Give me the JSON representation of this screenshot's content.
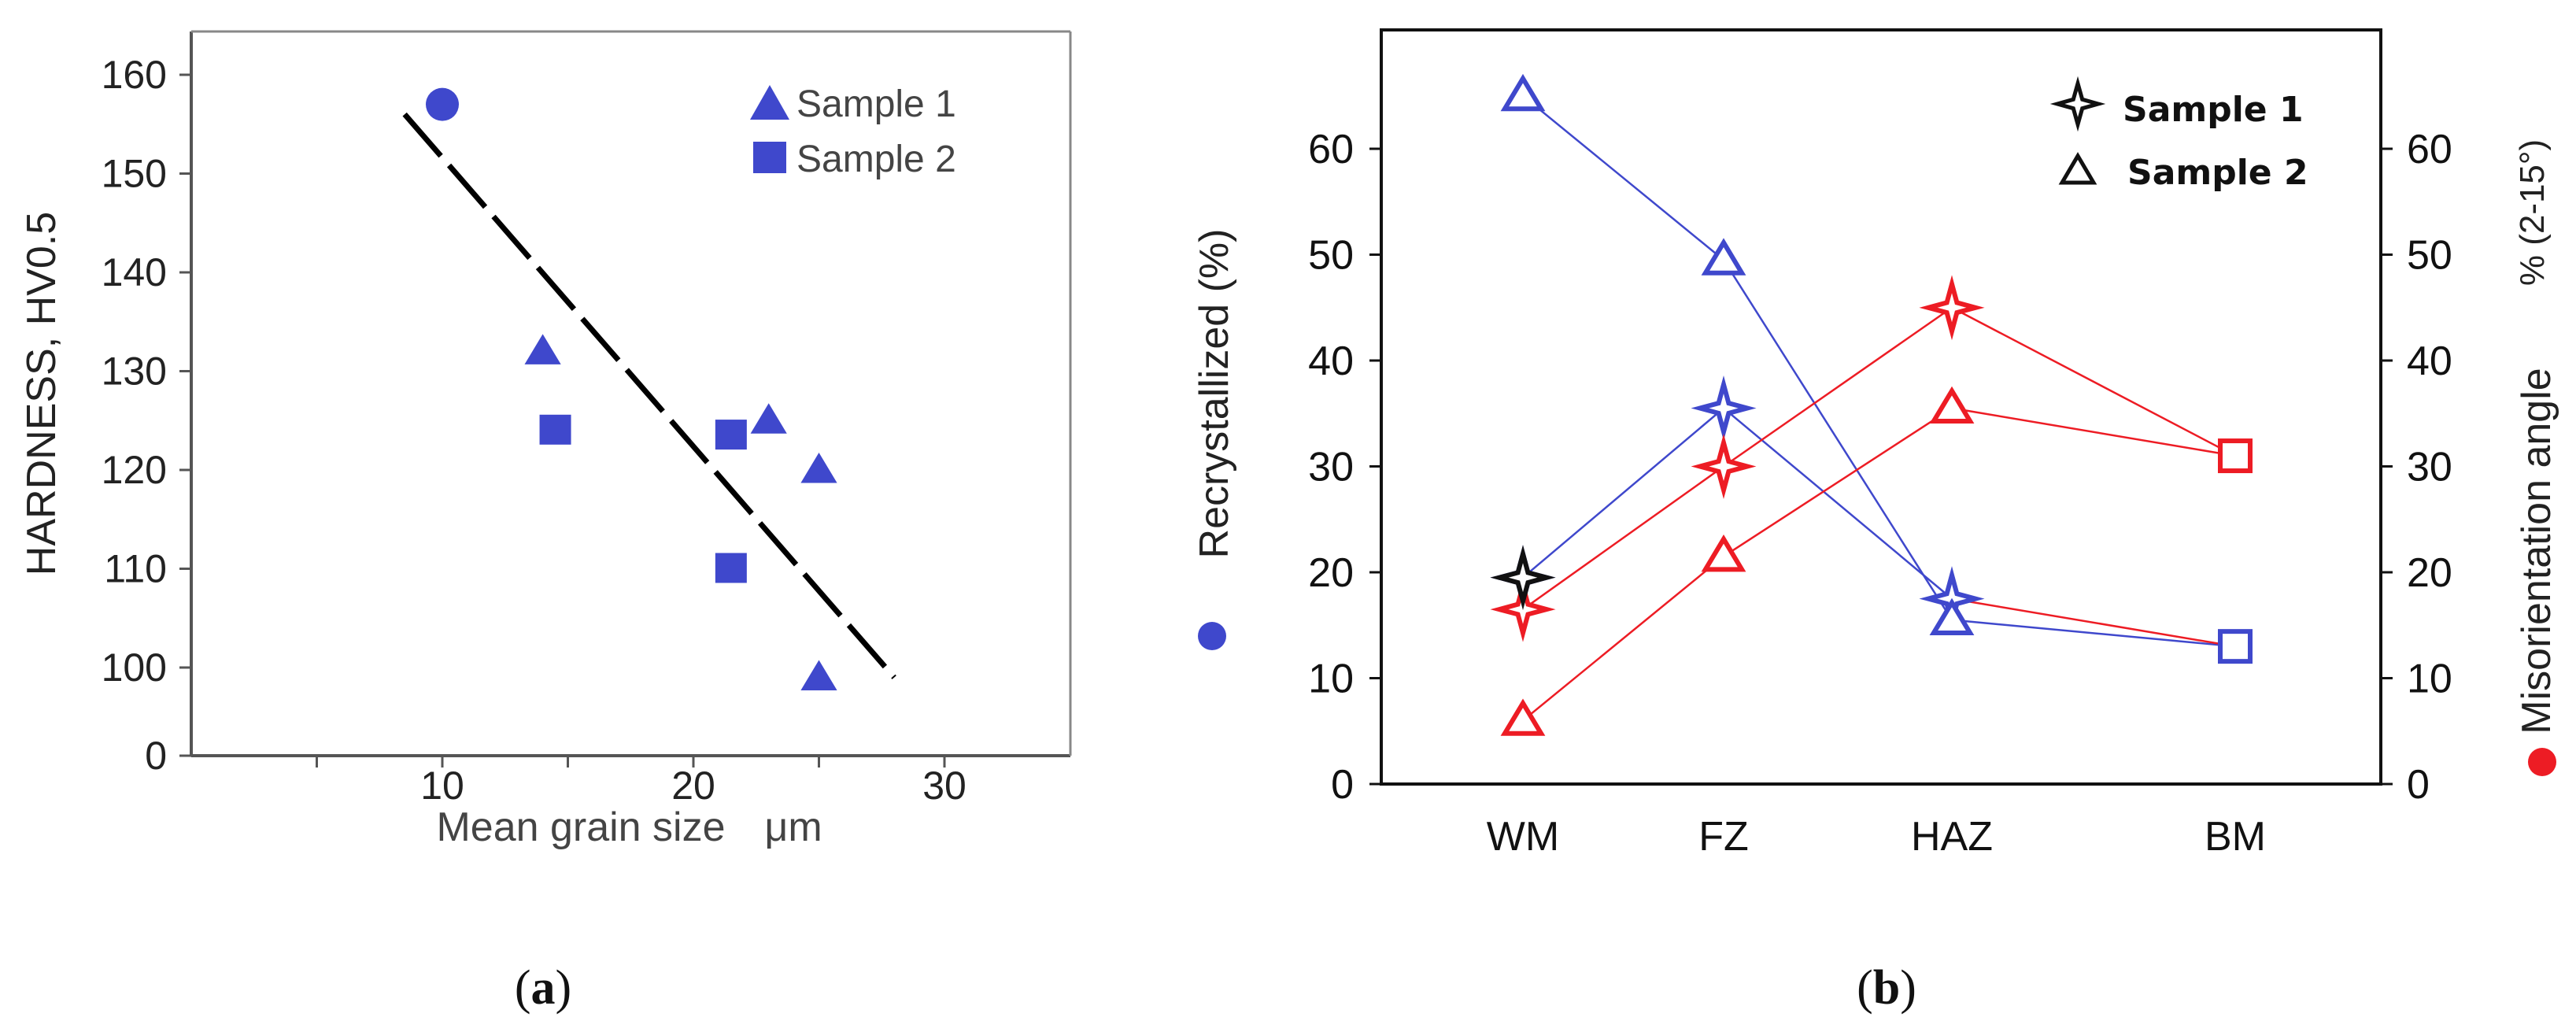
{
  "chart_data": [
    {
      "type": "scatter",
      "panel_label": "(a)",
      "panel_letter": "a",
      "title": "",
      "xlabel": "Mean grain size",
      "xlabel_unit": "μm",
      "ylabel": "HARDNESS, HV0.5",
      "xlim": [
        0,
        35
      ],
      "ylim": [
        0,
        160
      ],
      "xticks": [
        "10",
        "20",
        "30"
      ],
      "yticks": [
        "0",
        "100",
        "110",
        "120",
        "130",
        "140",
        "150",
        "160"
      ],
      "series": [
        {
          "name": "Sample 1",
          "marker": "triangle",
          "color": "#3f48cc",
          "points": [
            [
              14,
              132
            ],
            [
              23,
              125
            ],
            [
              25,
              120
            ],
            [
              25,
              99
            ]
          ]
        },
        {
          "name": "Sample 2",
          "marker": "square",
          "color": "#3f48cc",
          "points": [
            [
              14.5,
              124
            ],
            [
              21.5,
              123.5
            ],
            [
              21.5,
              110
            ]
          ]
        },
        {
          "name": "",
          "marker": "circle",
          "color": "#3f48cc",
          "points": [
            [
              10,
              157
            ]
          ]
        }
      ],
      "trendline": {
        "style": "dashed",
        "color": "#000000",
        "x": [
          8.5,
          28
        ],
        "y": [
          156,
          99
        ]
      },
      "legend": [
        "Sample 1",
        "Sample 2"
      ]
    },
    {
      "type": "line",
      "panel_label": "(b)",
      "panel_letter": "b",
      "title": "",
      "categories": [
        "WM",
        "FZ",
        "HAZ",
        "BM"
      ],
      "ylabel_left": "Recrystallized  (%)",
      "ylabel_right": "Misorientation angle",
      "ylabel_right_unit": "% (2-15°)",
      "ylim_left": [
        0,
        70
      ],
      "ylim_right": [
        0,
        70
      ],
      "yticks": [
        "0",
        "10",
        "20",
        "30",
        "40",
        "50",
        "60"
      ],
      "axis_colors": {
        "left": "#3f48cc",
        "right": "#ed1c24"
      },
      "series": [
        {
          "name": "Sample 1 Recrystallized",
          "marker": "star",
          "color": "#3f48cc",
          "values": [
            19.5,
            35.5,
            17.5,
            null
          ]
        },
        {
          "name": "Sample 2 Recrystallized",
          "marker": "triangle",
          "color": "#3f48cc",
          "values": [
            65,
            49.5,
            15.5,
            13
          ]
        },
        {
          "name": "Sample 1 Misorientation",
          "marker": "star",
          "color": "#ed1c24",
          "values": [
            16.5,
            30,
            45,
            31
          ]
        },
        {
          "name": "Sample 2 Misorientation",
          "marker": "triangle",
          "color": "#ed1c24",
          "values": [
            6,
            21.5,
            35.5,
            31
          ]
        }
      ],
      "extra_segments": [
        {
          "color": "#ed1c24",
          "from": [
            "HAZ",
            17.5
          ],
          "to": [
            "BM",
            13
          ]
        }
      ],
      "bm_markers": [
        {
          "marker": "square",
          "color": "#3f48cc",
          "value": 13
        },
        {
          "marker": "square",
          "color": "#ed1c24",
          "value": 31
        }
      ],
      "wm_black_star": 19.5,
      "legend": [
        "Sample 1",
        "Sample 2"
      ]
    }
  ]
}
